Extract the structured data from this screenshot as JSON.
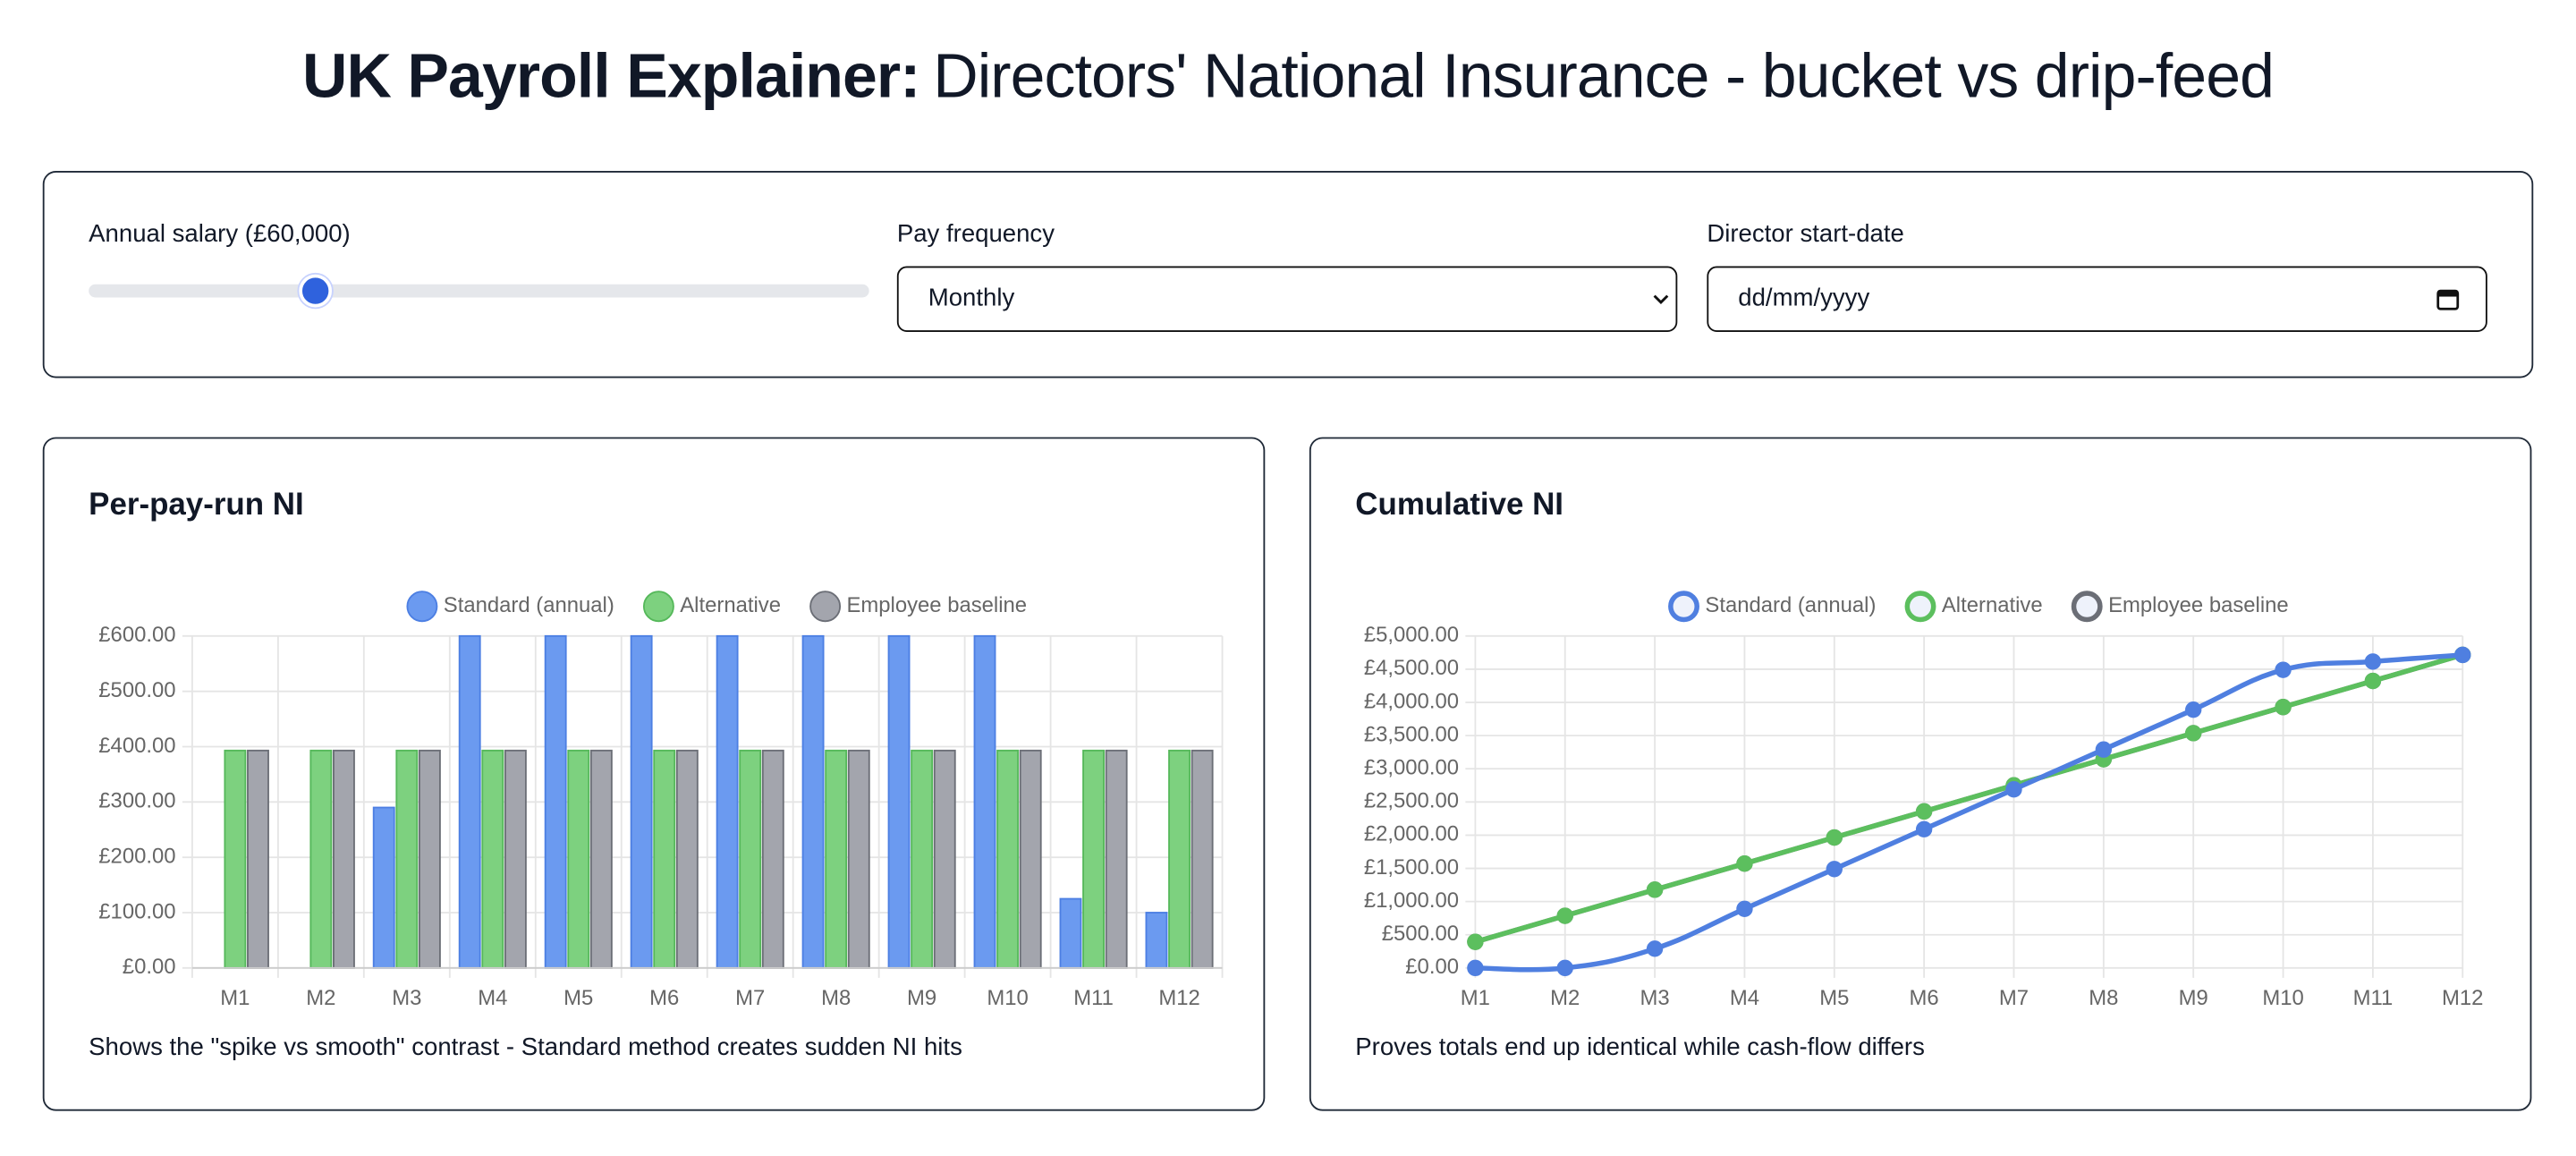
{
  "header": {
    "title_bold": "UK Payroll Explainer:",
    "title_rest": "Directors' National Insurance - bucket vs drip-feed"
  },
  "controls": {
    "salary_label": "Annual salary (£60,000)",
    "frequency_label": "Pay frequency",
    "frequency_value": "Monthly",
    "start_date_label": "Director start-date",
    "start_date_placeholder": "dd/mm/yyyy"
  },
  "chart_data": [
    {
      "type": "bar",
      "title": "Per-pay-run NI",
      "caption": "Shows the \"spike vs smooth\" contrast - Standard method creates sudden NI hits",
      "categories": [
        "M1",
        "M2",
        "M3",
        "M4",
        "M5",
        "M6",
        "M7",
        "M8",
        "M9",
        "M10",
        "M11",
        "M12"
      ],
      "series": [
        {
          "name": "Standard (annual)",
          "color": "#6b9af0",
          "border": "#4c7fe3",
          "values": [
            0,
            0,
            290,
            600,
            600,
            600,
            600,
            600,
            600,
            600,
            125,
            100
          ]
        },
        {
          "name": "Alternative",
          "color": "#7dd17f",
          "border": "#55b85a",
          "values": [
            393,
            393,
            393,
            393,
            393,
            393,
            393,
            393,
            393,
            393,
            393,
            393
          ]
        },
        {
          "name": "Employee baseline",
          "color": "#a3a5ad",
          "border": "#6b6e76",
          "values": [
            393,
            393,
            393,
            393,
            393,
            393,
            393,
            393,
            393,
            393,
            393,
            393
          ]
        }
      ],
      "ylim": [
        0,
        600
      ],
      "yticks": [
        {
          "value": 0,
          "label": "£0.00"
        },
        {
          "value": 100,
          "label": "£100.00"
        },
        {
          "value": 200,
          "label": "£200.00"
        },
        {
          "value": 300,
          "label": "£300.00"
        },
        {
          "value": 400,
          "label": "£400.00"
        },
        {
          "value": 500,
          "label": "£500.00"
        },
        {
          "value": 600,
          "label": "£600.00"
        }
      ],
      "grid": true,
      "legend": "top"
    },
    {
      "type": "line",
      "title": "Cumulative NI",
      "caption": "Proves totals end up identical while cash-flow differs",
      "categories": [
        "M1",
        "M2",
        "M3",
        "M4",
        "M5",
        "M6",
        "M7",
        "M8",
        "M9",
        "M10",
        "M11",
        "M12"
      ],
      "series": [
        {
          "name": "Standard (annual)",
          "color": "#4f7fe0",
          "values": [
            0,
            0,
            290,
            890,
            1490,
            2090,
            2690,
            3290,
            3890,
            4490,
            4615,
            4715
          ]
        },
        {
          "name": "Alternative",
          "color": "#5cbf5e",
          "values": [
            393,
            786,
            1179,
            1572,
            1965,
            2358,
            2751,
            3144,
            3537,
            3930,
            4323,
            4716
          ]
        },
        {
          "name": "Employee baseline",
          "color": "#6b6e76",
          "values": [
            393,
            786,
            1179,
            1572,
            1965,
            2358,
            2751,
            3144,
            3537,
            3930,
            4323,
            4716
          ]
        }
      ],
      "ylim": [
        0,
        5000
      ],
      "yticks": [
        {
          "value": 0,
          "label": "£0.00"
        },
        {
          "value": 500,
          "label": "£500.00"
        },
        {
          "value": 1000,
          "label": "£1,000.00"
        },
        {
          "value": 1500,
          "label": "£1,500.00"
        },
        {
          "value": 2000,
          "label": "£2,000.00"
        },
        {
          "value": 2500,
          "label": "£2,500.00"
        },
        {
          "value": 3000,
          "label": "£3,000.00"
        },
        {
          "value": 3500,
          "label": "£3,500.00"
        },
        {
          "value": 4000,
          "label": "£4,000.00"
        },
        {
          "value": 4500,
          "label": "£4,500.00"
        },
        {
          "value": 5000,
          "label": "£5,000.00"
        }
      ],
      "grid": true,
      "legend": "top"
    }
  ]
}
